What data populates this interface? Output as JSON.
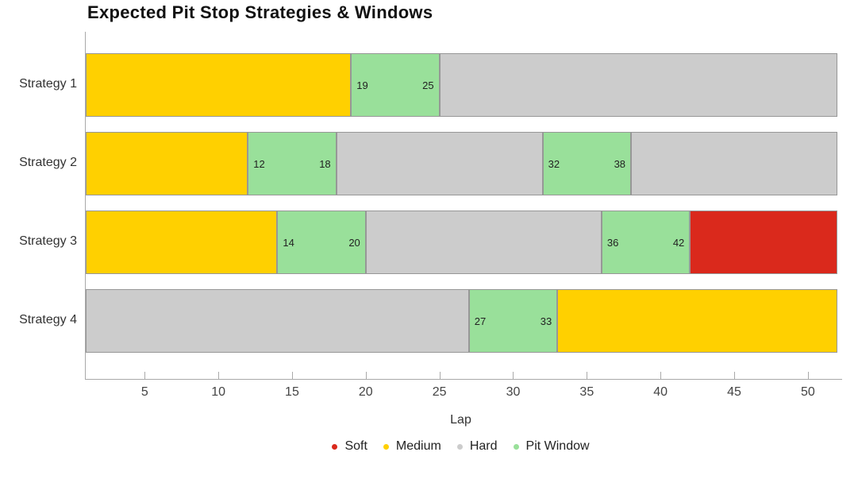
{
  "title": "Expected Pit Stop Strategies & Windows",
  "chart_data": {
    "type": "bar",
    "subtype": "horizontal-stacked-timeline",
    "title": "Expected Pit Stop Strategies & Windows",
    "xlabel": "Lap",
    "xlim": [
      1,
      52
    ],
    "x_ticks": [
      5,
      10,
      15,
      20,
      25,
      30,
      35,
      40,
      45,
      50
    ],
    "grid": false,
    "legend_position": "bottom-center",
    "categories": [
      "Strategy 1",
      "Strategy 2",
      "Strategy 3",
      "Strategy 4"
    ],
    "compound_colors": {
      "Soft": "#da291c",
      "Medium": "#ffd000",
      "Hard": "#cccccc",
      "Pit Window": "#99e09a"
    },
    "segment_border_color": "#979797",
    "legend": [
      "Soft",
      "Medium",
      "Hard",
      "Pit Window"
    ],
    "rows": [
      {
        "category": "Strategy 1",
        "segments": [
          {
            "type": "Medium",
            "start": 1,
            "end": 19
          },
          {
            "type": "Pit Window",
            "start": 19,
            "end": 25,
            "start_label": "19",
            "end_label": "25"
          },
          {
            "type": "Hard",
            "start": 25,
            "end": 52
          }
        ]
      },
      {
        "category": "Strategy 2",
        "segments": [
          {
            "type": "Medium",
            "start": 1,
            "end": 12
          },
          {
            "type": "Pit Window",
            "start": 12,
            "end": 18,
            "start_label": "12",
            "end_label": "18"
          },
          {
            "type": "Hard",
            "start": 18,
            "end": 32
          },
          {
            "type": "Pit Window",
            "start": 32,
            "end": 38,
            "start_label": "32",
            "end_label": "38"
          },
          {
            "type": "Hard",
            "start": 38,
            "end": 52
          }
        ]
      },
      {
        "category": "Strategy 3",
        "segments": [
          {
            "type": "Medium",
            "start": 1,
            "end": 14
          },
          {
            "type": "Pit Window",
            "start": 14,
            "end": 20,
            "start_label": "14",
            "end_label": "20"
          },
          {
            "type": "Hard",
            "start": 20,
            "end": 36
          },
          {
            "type": "Pit Window",
            "start": 36,
            "end": 42,
            "start_label": "36",
            "end_label": "42"
          },
          {
            "type": "Soft",
            "start": 42,
            "end": 52
          }
        ]
      },
      {
        "category": "Strategy 4",
        "segments": [
          {
            "type": "Hard",
            "start": 1,
            "end": 27
          },
          {
            "type": "Pit Window",
            "start": 27,
            "end": 33,
            "start_label": "27",
            "end_label": "33"
          },
          {
            "type": "Medium",
            "start": 33,
            "end": 52
          }
        ]
      }
    ]
  }
}
